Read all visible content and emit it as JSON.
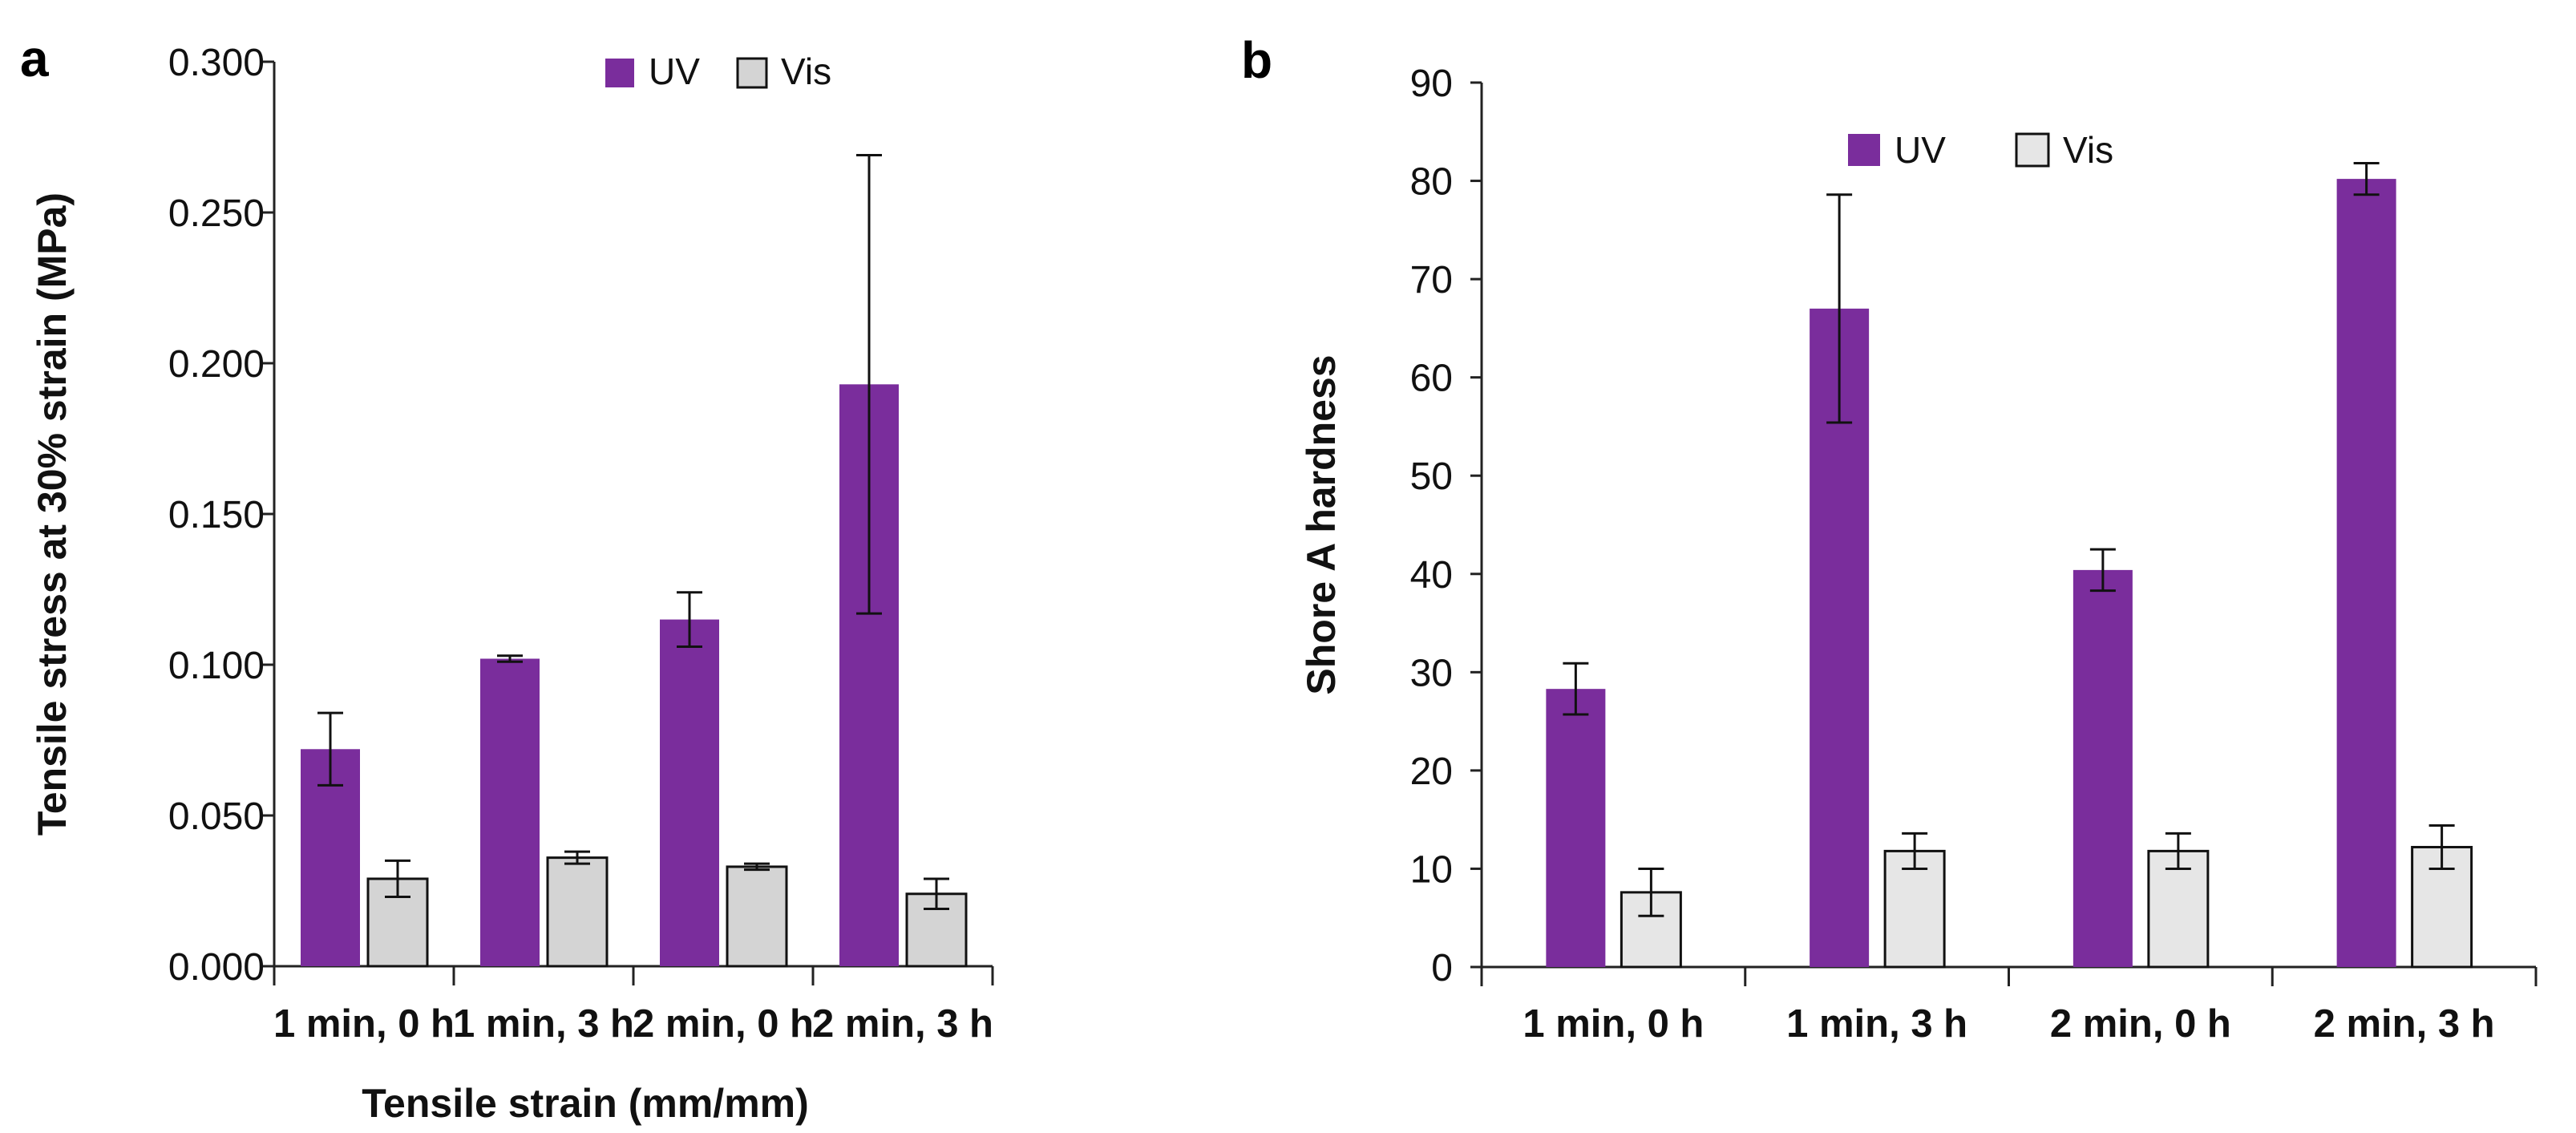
{
  "chart_data": [
    {
      "panel": "a",
      "type": "bar",
      "title": "",
      "xlabel": "Tensile strain (mm/mm)",
      "ylabel": "Tensile stress at 30% strain (MPa)",
      "ylim": [
        0,
        0.3
      ],
      "yticks": [
        "0.000",
        "0.050",
        "0.100",
        "0.150",
        "0.200",
        "0.250",
        "0.300"
      ],
      "categories": [
        "1 min, 0 h",
        "1 min, 3 h",
        "2 min, 0 h",
        "2 min, 3 h"
      ],
      "legend_position": "top",
      "series": [
        {
          "name": "UV",
          "color": "#7a2d9c",
          "values": [
            0.072,
            0.102,
            0.115,
            0.193
          ],
          "errors": [
            0.012,
            0.001,
            0.009,
            0.076
          ]
        },
        {
          "name": "Vis",
          "color": "#d4d4d4",
          "values": [
            0.029,
            0.036,
            0.033,
            0.024
          ],
          "errors": [
            0.006,
            0.002,
            0.001,
            0.005
          ]
        }
      ]
    },
    {
      "panel": "b",
      "type": "bar",
      "title": "",
      "xlabel": "",
      "ylabel": "Shore A hardness",
      "ylim": [
        0,
        90
      ],
      "yticks": [
        "0",
        "10",
        "20",
        "30",
        "40",
        "50",
        "60",
        "70",
        "80",
        "90"
      ],
      "categories": [
        "1 min, 0 h",
        "1 min, 3 h",
        "2 min, 0 h",
        "2 min, 3 h"
      ],
      "legend_position": "top",
      "series": [
        {
          "name": "UV",
          "color": "#7a2d9c",
          "values": [
            28.3,
            67.0,
            40.4,
            80.2
          ],
          "errors": [
            2.6,
            11.6,
            2.1,
            1.6
          ]
        },
        {
          "name": "Vis",
          "color": "#e6e6e6",
          "values": [
            7.6,
            11.8,
            11.8,
            12.2
          ],
          "errors": [
            2.4,
            1.8,
            1.8,
            2.2
          ]
        }
      ]
    }
  ]
}
